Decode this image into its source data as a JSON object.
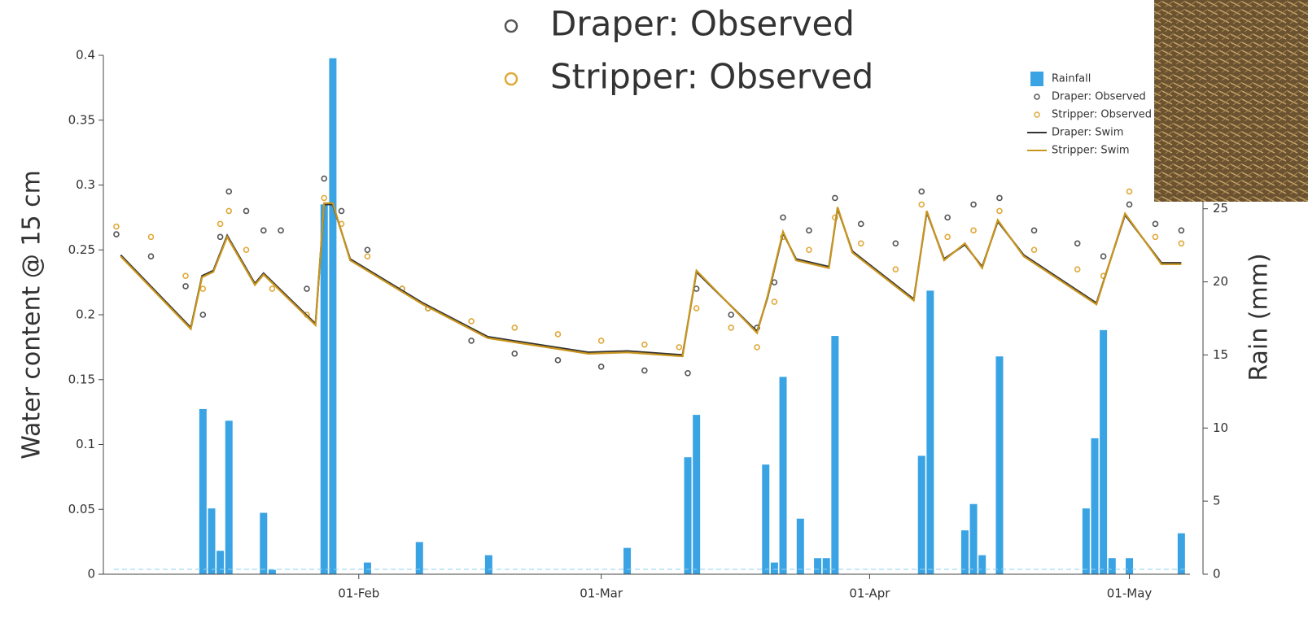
{
  "chart_data": {
    "type": "combo",
    "ylabel": "Water content @ 15 cm",
    "y2label": "Rain (mm)",
    "xlim": [
      2.5,
      128
    ],
    "xticks": [
      {
        "value": 32,
        "label": "01-Feb"
      },
      {
        "value": 60,
        "label": "01-Mar"
      },
      {
        "value": 91,
        "label": "01-Apr"
      },
      {
        "value": 121,
        "label": "01-May"
      }
    ],
    "ylim": [
      0,
      0.4
    ],
    "yticks": [
      0,
      0.05,
      0.1,
      0.15,
      0.2,
      0.25,
      0.3,
      0.35,
      0.4
    ],
    "y2lim": [
      0,
      35.5
    ],
    "y2ticks": [
      0,
      5,
      10,
      15,
      20,
      25
    ],
    "series": [
      {
        "name": "Rainfall",
        "type": "bar",
        "axis": "y2",
        "color": "#3aa3e3",
        "x": [
          14,
          15,
          16,
          17,
          21,
          22,
          28,
          29,
          33,
          39,
          47,
          63,
          70,
          71,
          79,
          80,
          81,
          83,
          85,
          86,
          87,
          97,
          98,
          102,
          103,
          104,
          106,
          116,
          117,
          118,
          119,
          121,
          127
        ],
        "values": [
          11.3,
          4.5,
          1.6,
          10.5,
          4.2,
          0.3,
          25.3,
          35.3,
          0.8,
          2.2,
          1.3,
          1.8,
          8.0,
          10.9,
          7.5,
          0.8,
          13.5,
          3.8,
          1.1,
          1.1,
          16.3,
          8.1,
          19.4,
          3.0,
          4.8,
          1.3,
          14.9,
          4.5,
          9.3,
          16.7,
          1.1,
          1.1,
          2.8
        ]
      },
      {
        "name": "Draper: Observed",
        "type": "scatter",
        "color": "#555555",
        "x": [
          4,
          8,
          12,
          14,
          16,
          17,
          19,
          21,
          23,
          26,
          28,
          30,
          33,
          37,
          40,
          45,
          50,
          55,
          60,
          65,
          70,
          71,
          75,
          78,
          80,
          81,
          84,
          87,
          90,
          94,
          97,
          100,
          103,
          106,
          110,
          115,
          118,
          121,
          124,
          127
        ],
        "values": [
          0.262,
          0.245,
          0.222,
          0.2,
          0.26,
          0.295,
          0.28,
          0.265,
          0.265,
          0.22,
          0.305,
          0.28,
          0.25,
          0.22,
          0.205,
          0.18,
          0.17,
          0.165,
          0.16,
          0.157,
          0.155,
          0.22,
          0.2,
          0.19,
          0.225,
          0.275,
          0.265,
          0.29,
          0.27,
          0.255,
          0.295,
          0.275,
          0.285,
          0.29,
          0.265,
          0.255,
          0.245,
          0.285,
          0.27,
          0.265
        ]
      },
      {
        "name": "Stripper: Observed",
        "type": "scatter",
        "color": "#e0a93a",
        "x": [
          4,
          8,
          12,
          14,
          16,
          17,
          19,
          22,
          26,
          28,
          30,
          33,
          37,
          40,
          45,
          50,
          55,
          60,
          65,
          69,
          71,
          75,
          78,
          80,
          81,
          84,
          87,
          90,
          94,
          97,
          100,
          103,
          106,
          110,
          115,
          118,
          121,
          124,
          127
        ],
        "values": [
          0.268,
          0.26,
          0.23,
          0.22,
          0.27,
          0.28,
          0.25,
          0.22,
          0.2,
          0.29,
          0.27,
          0.245,
          0.22,
          0.205,
          0.195,
          0.19,
          0.185,
          0.18,
          0.177,
          0.175,
          0.205,
          0.19,
          0.175,
          0.21,
          0.26,
          0.25,
          0.275,
          0.255,
          0.235,
          0.285,
          0.26,
          0.265,
          0.28,
          0.25,
          0.235,
          0.23,
          0.295,
          0.26,
          0.255
        ]
      },
      {
        "name": "Draper: Swim",
        "type": "line",
        "color": "#333333",
        "x": [
          4.5,
          12.6,
          13.9,
          15.2,
          16.8,
          20,
          21,
          27,
          28,
          29,
          31,
          39.4,
          46.9,
          58.5,
          63,
          69.4,
          71,
          78,
          79.2,
          81,
          82.5,
          86.3,
          87.3,
          89,
          96.1,
          97.6,
          99.6,
          102,
          104,
          105.8,
          108.8,
          117.2,
          120.5,
          124.7,
          127
        ],
        "values": [
          0.246,
          0.19,
          0.23,
          0.234,
          0.261,
          0.224,
          0.232,
          0.193,
          0.285,
          0.285,
          0.243,
          0.209,
          0.183,
          0.171,
          0.172,
          0.169,
          0.233,
          0.187,
          0.213,
          0.263,
          0.243,
          0.237,
          0.282,
          0.249,
          0.212,
          0.279,
          0.243,
          0.254,
          0.237,
          0.272,
          0.246,
          0.209,
          0.277,
          0.24,
          0.24
        ]
      },
      {
        "name": "Stripper: Swim",
        "type": "line",
        "color": "#c9951e",
        "x": [
          4.5,
          12.6,
          13.9,
          15.2,
          16.8,
          20,
          21,
          27,
          28,
          29,
          31,
          39.4,
          46.9,
          58.5,
          63,
          69.4,
          71,
          78,
          79.2,
          81,
          82.5,
          86.3,
          87.3,
          89,
          96.1,
          97.6,
          99.6,
          102,
          104,
          105.8,
          108.8,
          117.2,
          120.5,
          124.7,
          127
        ],
        "values": [
          0.245,
          0.189,
          0.229,
          0.233,
          0.26,
          0.223,
          0.231,
          0.192,
          0.286,
          0.286,
          0.242,
          0.208,
          0.182,
          0.17,
          0.171,
          0.168,
          0.234,
          0.186,
          0.214,
          0.264,
          0.242,
          0.236,
          0.283,
          0.248,
          0.211,
          0.28,
          0.242,
          0.255,
          0.236,
          0.273,
          0.245,
          0.208,
          0.278,
          0.239,
          0.239
        ]
      }
    ]
  }
}
